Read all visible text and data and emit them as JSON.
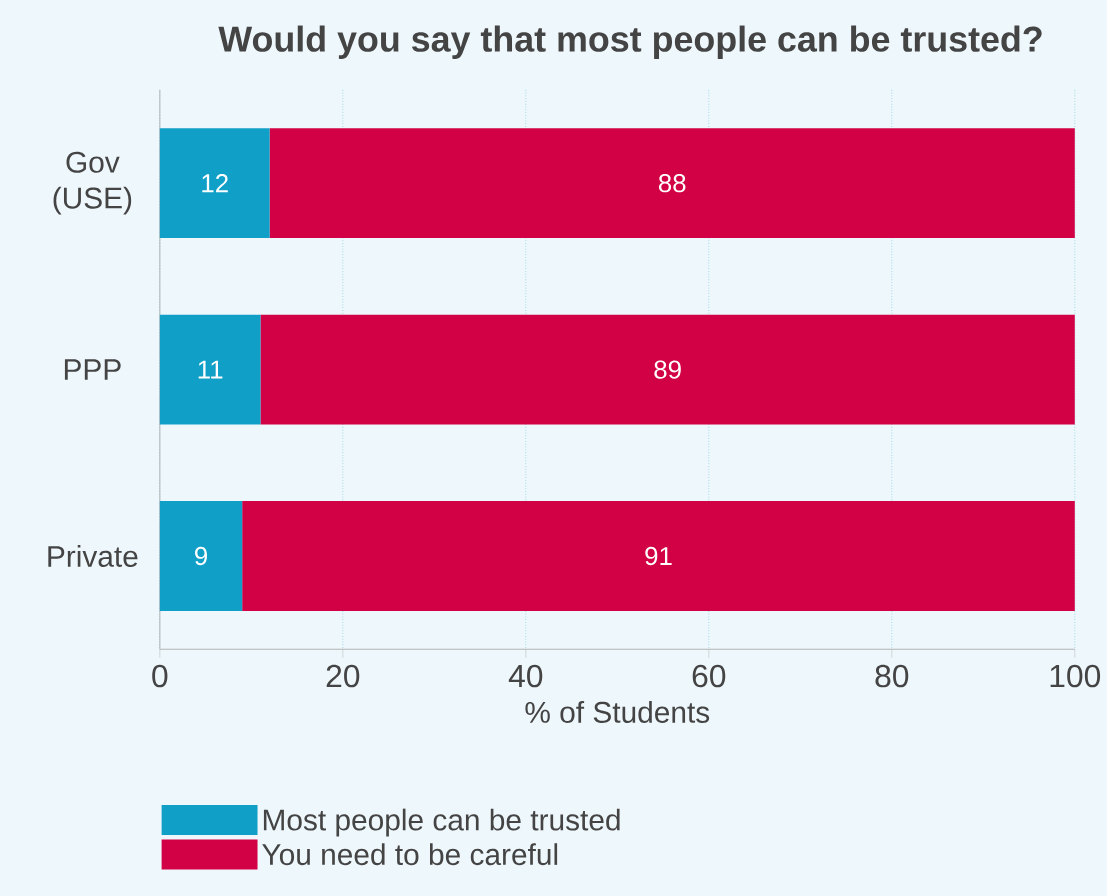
{
  "chart_data": {
    "type": "bar",
    "orientation": "horizontal",
    "stacked": true,
    "title": "Would you say that most people can be trusted?",
    "xlabel": "% of Students",
    "categories": [
      "Gov (USE)",
      "PPP",
      "Private"
    ],
    "series": [
      {
        "name": "Most people can be trusted",
        "color": "#109fc7",
        "values": [
          12,
          11,
          9
        ]
      },
      {
        "name": "You need to be careful",
        "color": "#d20044",
        "values": [
          88,
          89,
          91
        ]
      }
    ],
    "xlim": [
      0,
      100
    ],
    "xticks": [
      0,
      20,
      40,
      60,
      80,
      100
    ],
    "grid": "x",
    "legend": "bottom",
    "data_labels": true
  }
}
